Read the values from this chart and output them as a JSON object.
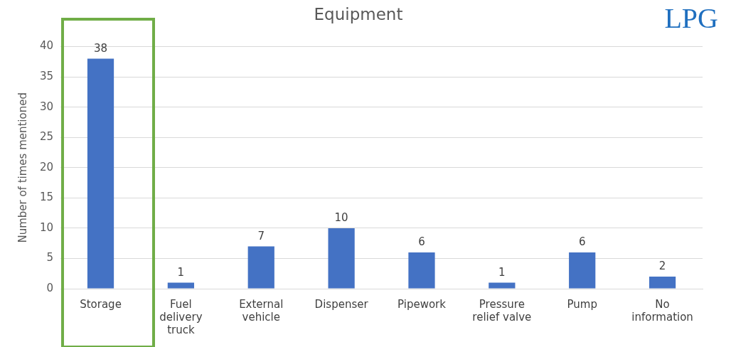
{
  "chart_data": {
    "type": "bar",
    "title": "Equipment",
    "ylabel": "Number of times mentioned",
    "categories": [
      "Storage",
      "Fuel delivery truck",
      "External vehicle",
      "Dispenser",
      "Pipework",
      "Pressure relief valve",
      "Pump",
      "No information"
    ],
    "values": [
      38,
      1,
      7,
      10,
      6,
      1,
      6,
      2
    ],
    "color": "#4472c4",
    "ylim": [
      0,
      40
    ],
    "yticks": [
      0,
      5,
      10,
      15,
      20,
      25,
      30,
      35,
      40
    ],
    "grid": "y",
    "legend": false,
    "data_labels": true,
    "annotations": [
      "LPG"
    ]
  }
}
